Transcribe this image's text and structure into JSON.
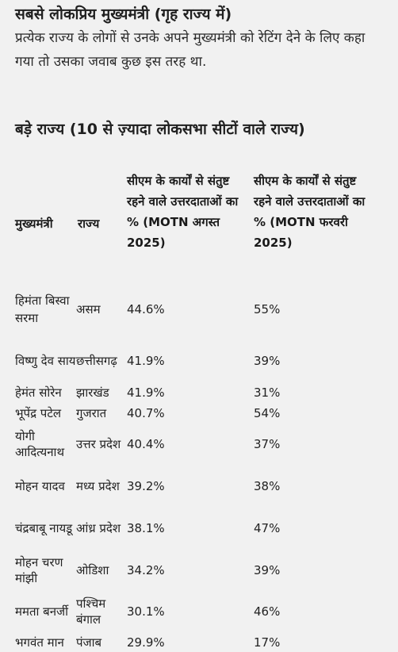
{
  "heading": "सबसे लोकप्रिय मुख्यमंत्री (गृह राज्य में)",
  "intro": "प्रत्येक राज्य के लोगों से उनके अपने मुख्यमंत्री को रेटिंग देने के लिए कहा गया तो उसका जवाब कुछ इस तरह था.",
  "section_heading": "बड़े राज्य (10 से ज़्यादा लोकसभा सीटों वाले राज्य)",
  "table": {
    "headers": {
      "name": "मुख्यमंत्री",
      "state": "राज्य",
      "aug": "सीएम के कार्यों से संतुष्ट रहने वाले उत्तरदाताओं का % (MOTN अगस्त 2025)",
      "feb": "सीएम के कार्यों से संतुष्ट रहने वाले उत्तरदाताओं का % (MOTN फरवरी 2025)"
    },
    "rows": [
      {
        "name": "हिमंता बिस्वा सरमा",
        "state": "असम",
        "aug": "44.6%",
        "feb": "55%"
      },
      {
        "name": "विष्णु देव साय",
        "state": "छत्तीसगढ़",
        "aug": "41.9%",
        "feb": "39%"
      },
      {
        "name": "हेमंत सोरेन",
        "state": "झारखंड",
        "aug": "41.9%",
        "feb": "31%"
      },
      {
        "name": "भूपेंद्र पटेल",
        "state": "गुजरात",
        "aug": "40.7%",
        "feb": "54%"
      },
      {
        "name": "योगी आदित्यनाथ",
        "state": "उत्तर प्रदेश",
        "aug": "40.4%",
        "feb": "37%"
      },
      {
        "name": "मोहन यादव",
        "state": "मध्य प्रदेश",
        "aug": "39.2%",
        "feb": "38%"
      },
      {
        "name": "चंद्रबाबू नायडू",
        "state": "आंध्र प्रदेश",
        "aug": "38.1%",
        "feb": "47%"
      },
      {
        "name": "मोहन चरण मांझी",
        "state": "ओडिशा",
        "aug": "34.2%",
        "feb": "39%"
      },
      {
        "name": "ममता बनर्जी",
        "state": "पश्चिम बंगाल",
        "aug": "30.1%",
        "feb": "46%"
      },
      {
        "name": "भगवंत मान",
        "state": "पंजाब",
        "aug": "29.9%",
        "feb": "17%"
      }
    ]
  }
}
